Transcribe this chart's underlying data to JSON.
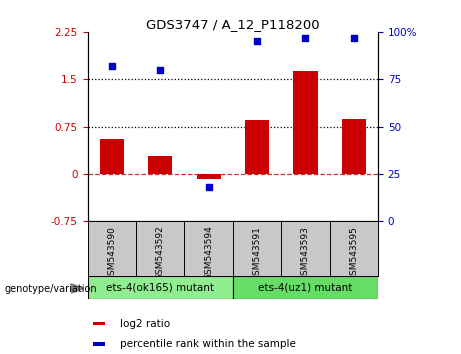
{
  "title": "GDS3747 / A_12_P118200",
  "samples": [
    "GSM543590",
    "GSM543592",
    "GSM543594",
    "GSM543591",
    "GSM543593",
    "GSM543595"
  ],
  "log2_ratio": [
    0.55,
    0.28,
    -0.08,
    0.85,
    1.63,
    0.87
  ],
  "percentile_rank": [
    82,
    80,
    18,
    95,
    97,
    97
  ],
  "groups": [
    {
      "label": "ets-4(ok165) mutant",
      "indices": [
        0,
        1,
        2
      ],
      "color": "#90EE90"
    },
    {
      "label": "ets-4(uz1) mutant",
      "indices": [
        3,
        4,
        5
      ],
      "color": "#66DD66"
    }
  ],
  "bar_color": "#CC0000",
  "scatter_color": "#0000CC",
  "ylim_left": [
    -0.75,
    2.25
  ],
  "ylim_right": [
    0,
    100
  ],
  "hlines": [
    0.75,
    1.5
  ],
  "zero_line": 0.0,
  "right_ticks": [
    0,
    25,
    50,
    75,
    100
  ],
  "right_tick_labels": [
    "0",
    "25",
    "50",
    "75",
    "100%"
  ],
  "left_ticks": [
    -0.75,
    0.0,
    0.75,
    1.5,
    2.25
  ],
  "left_tick_labels": [
    "-0.75",
    "0",
    "0.75",
    "1.5",
    "2.25"
  ],
  "bg_color_sample": "#C8C8C8",
  "group1_color": "#90EE90",
  "group2_color": "#66DD66",
  "genotype_label": "genotype/variation"
}
